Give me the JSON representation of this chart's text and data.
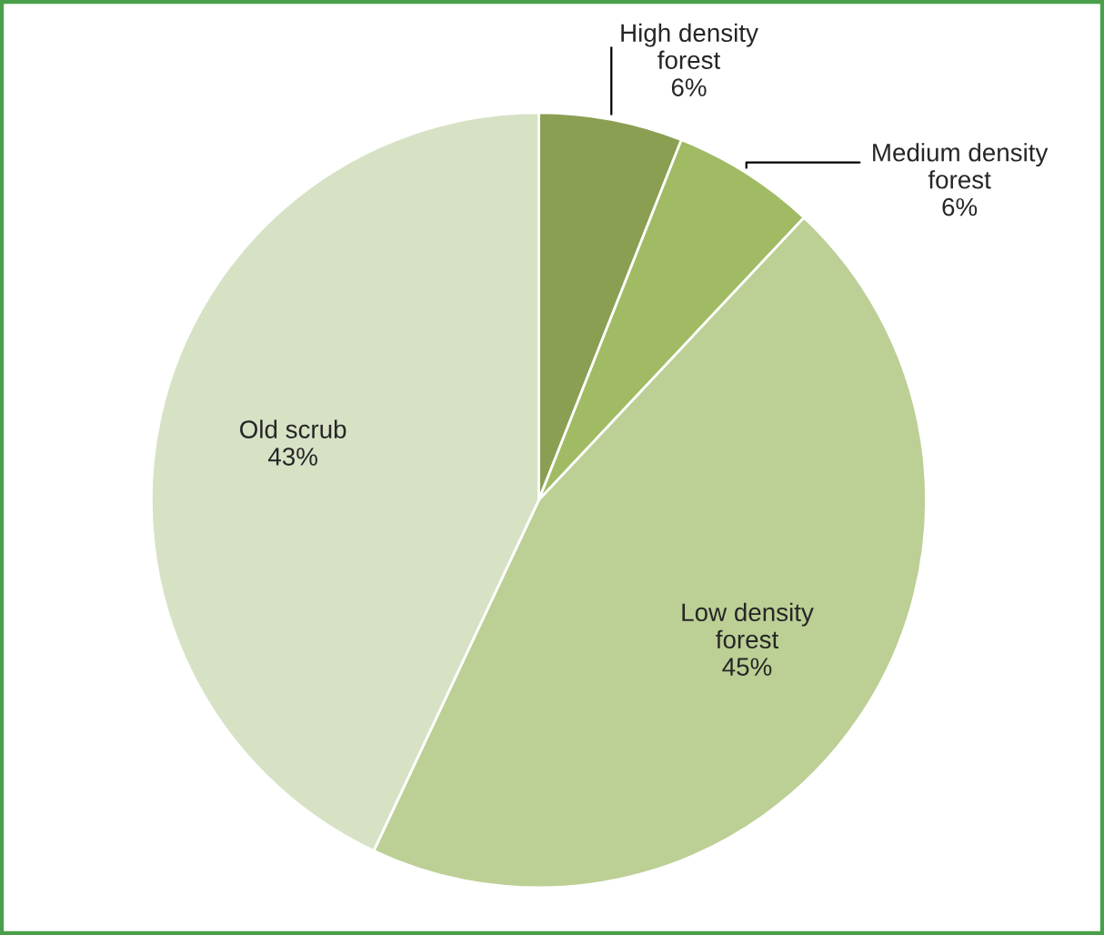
{
  "chart_data": {
    "type": "pie",
    "categories": [
      "High density\nforest",
      "Medium density\nforest",
      "Low density\nforest",
      "Old scrub"
    ],
    "values": [
      6,
      6,
      45,
      43
    ],
    "value_labels": [
      "6%",
      "6%",
      "45%",
      "43%"
    ],
    "colors": [
      "#8a9f52",
      "#a0bb63",
      "#bccf95",
      "#d7e2c5"
    ],
    "legend": false
  }
}
